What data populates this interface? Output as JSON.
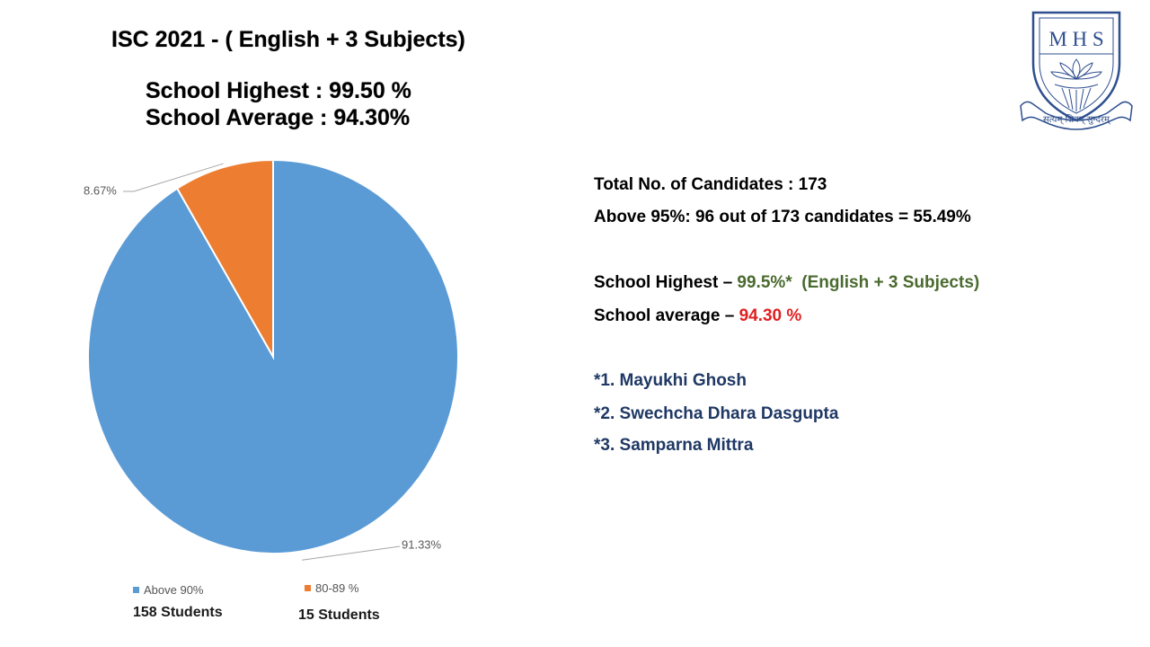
{
  "header": {
    "title": "ISC 2021 - ( English + 3 Subjects)",
    "school_highest": "School Highest : 99.50 %",
    "school_average": "School Average : 94.30%"
  },
  "chart_data": {
    "type": "pie",
    "slices": [
      {
        "name": "Above 90%",
        "value": 91.33,
        "label": "91.33%",
        "count_label": "158 Students",
        "color": "#5b9bd5"
      },
      {
        "name": "80-89 %",
        "value": 8.67,
        "label": "8.67%",
        "count_label": "15 Students",
        "color": "#ed7d31"
      }
    ],
    "legend_position": "bottom"
  },
  "info": {
    "total_candidates": "Total No. of Candidates  :  173",
    "above_95": "Above 95%: 96 out of 173 candidates = 55.49%",
    "highest_label": "School Highest",
    "highest_dash": " – ",
    "highest_value": "99.5%*",
    "highest_note": "  (English + 3 Subjects)",
    "average_label": "School average",
    "average_dash": " – ",
    "average_value": "94.30 %",
    "toppers": [
      "*1. Mayukhi Ghosh",
      "*2. Swechcha Dhara Dasgupta",
      "*3. Samparna Mittra"
    ],
    "colors": {
      "green": "#4a6a2f",
      "red": "#e02020",
      "navy": "#1f3864"
    }
  },
  "logo": {
    "initials": "M H S",
    "motto": "सत्यम् शिवम् सुन्दरम्"
  }
}
